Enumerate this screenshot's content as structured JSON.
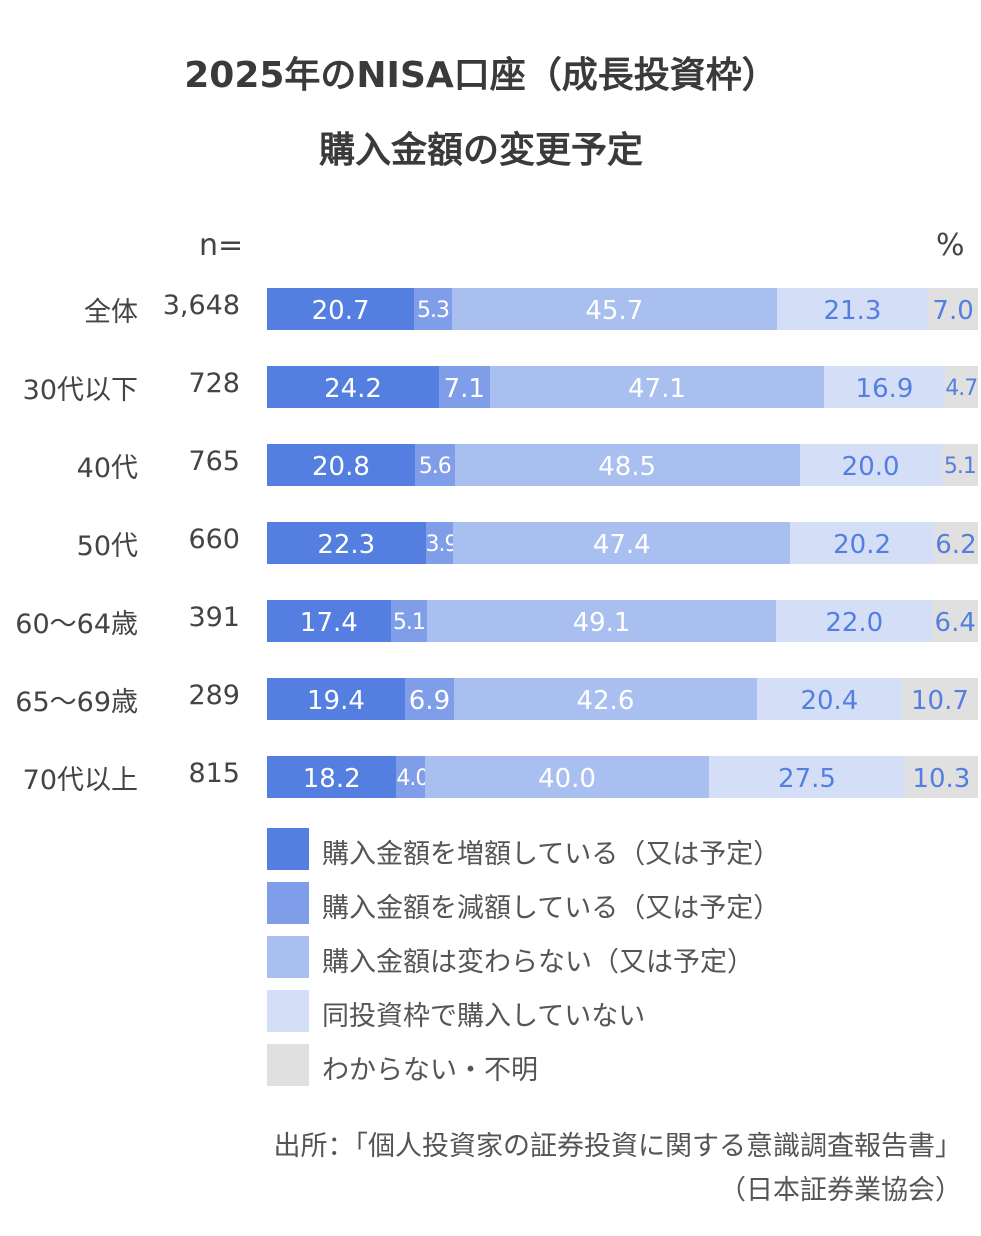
{
  "chart_data": {
    "type": "bar",
    "orientation": "horizontal",
    "stacked": true,
    "title": "2025年のNISA口座（成長投資枠）",
    "subtitle": "購入金額の変更予定",
    "n_header": "n=",
    "unit_label": "%",
    "categories": [
      "全体",
      "30代以下",
      "40代",
      "50代",
      "60〜64歳",
      "65〜69歳",
      "70代以上"
    ],
    "n_values": [
      "3,648",
      "728",
      "765",
      "660",
      "391",
      "289",
      "815"
    ],
    "series": [
      {
        "name": "購入金額を増額している（又は予定）",
        "color": "#547fe0",
        "label_color": "#ffffff",
        "values": [
          20.7,
          24.2,
          20.8,
          22.3,
          17.4,
          19.4,
          18.2
        ]
      },
      {
        "name": "購入金額を減額している（又は予定）",
        "color": "#7f9de8",
        "label_color": "#ffffff",
        "values": [
          5.3,
          7.1,
          5.6,
          3.9,
          5.1,
          6.9,
          4.0
        ]
      },
      {
        "name": "購入金額は変わらない（又は予定）",
        "color": "#a9bff0",
        "label_color": "#ffffff",
        "values": [
          45.7,
          47.1,
          48.5,
          47.4,
          49.1,
          42.6,
          40.0
        ]
      },
      {
        "name": "同投資枠で購入していない",
        "color": "#d4dff7",
        "label_color": "#547fe0",
        "values": [
          21.3,
          16.9,
          20.0,
          20.2,
          22.0,
          20.4,
          27.5
        ]
      },
      {
        "name": "わからない・不明",
        "color": "#e0e0e0",
        "label_color": "#547fe0",
        "values": [
          7.0,
          4.7,
          5.1,
          6.2,
          6.4,
          10.7,
          10.3
        ]
      }
    ],
    "xlim": [
      0,
      100
    ],
    "grid": false,
    "legend_placement": "bottom"
  },
  "source": {
    "line1": "出所：「個人投資家の証券投資に関する意識調査報告書」",
    "line2": "（日本証券業協会）"
  }
}
